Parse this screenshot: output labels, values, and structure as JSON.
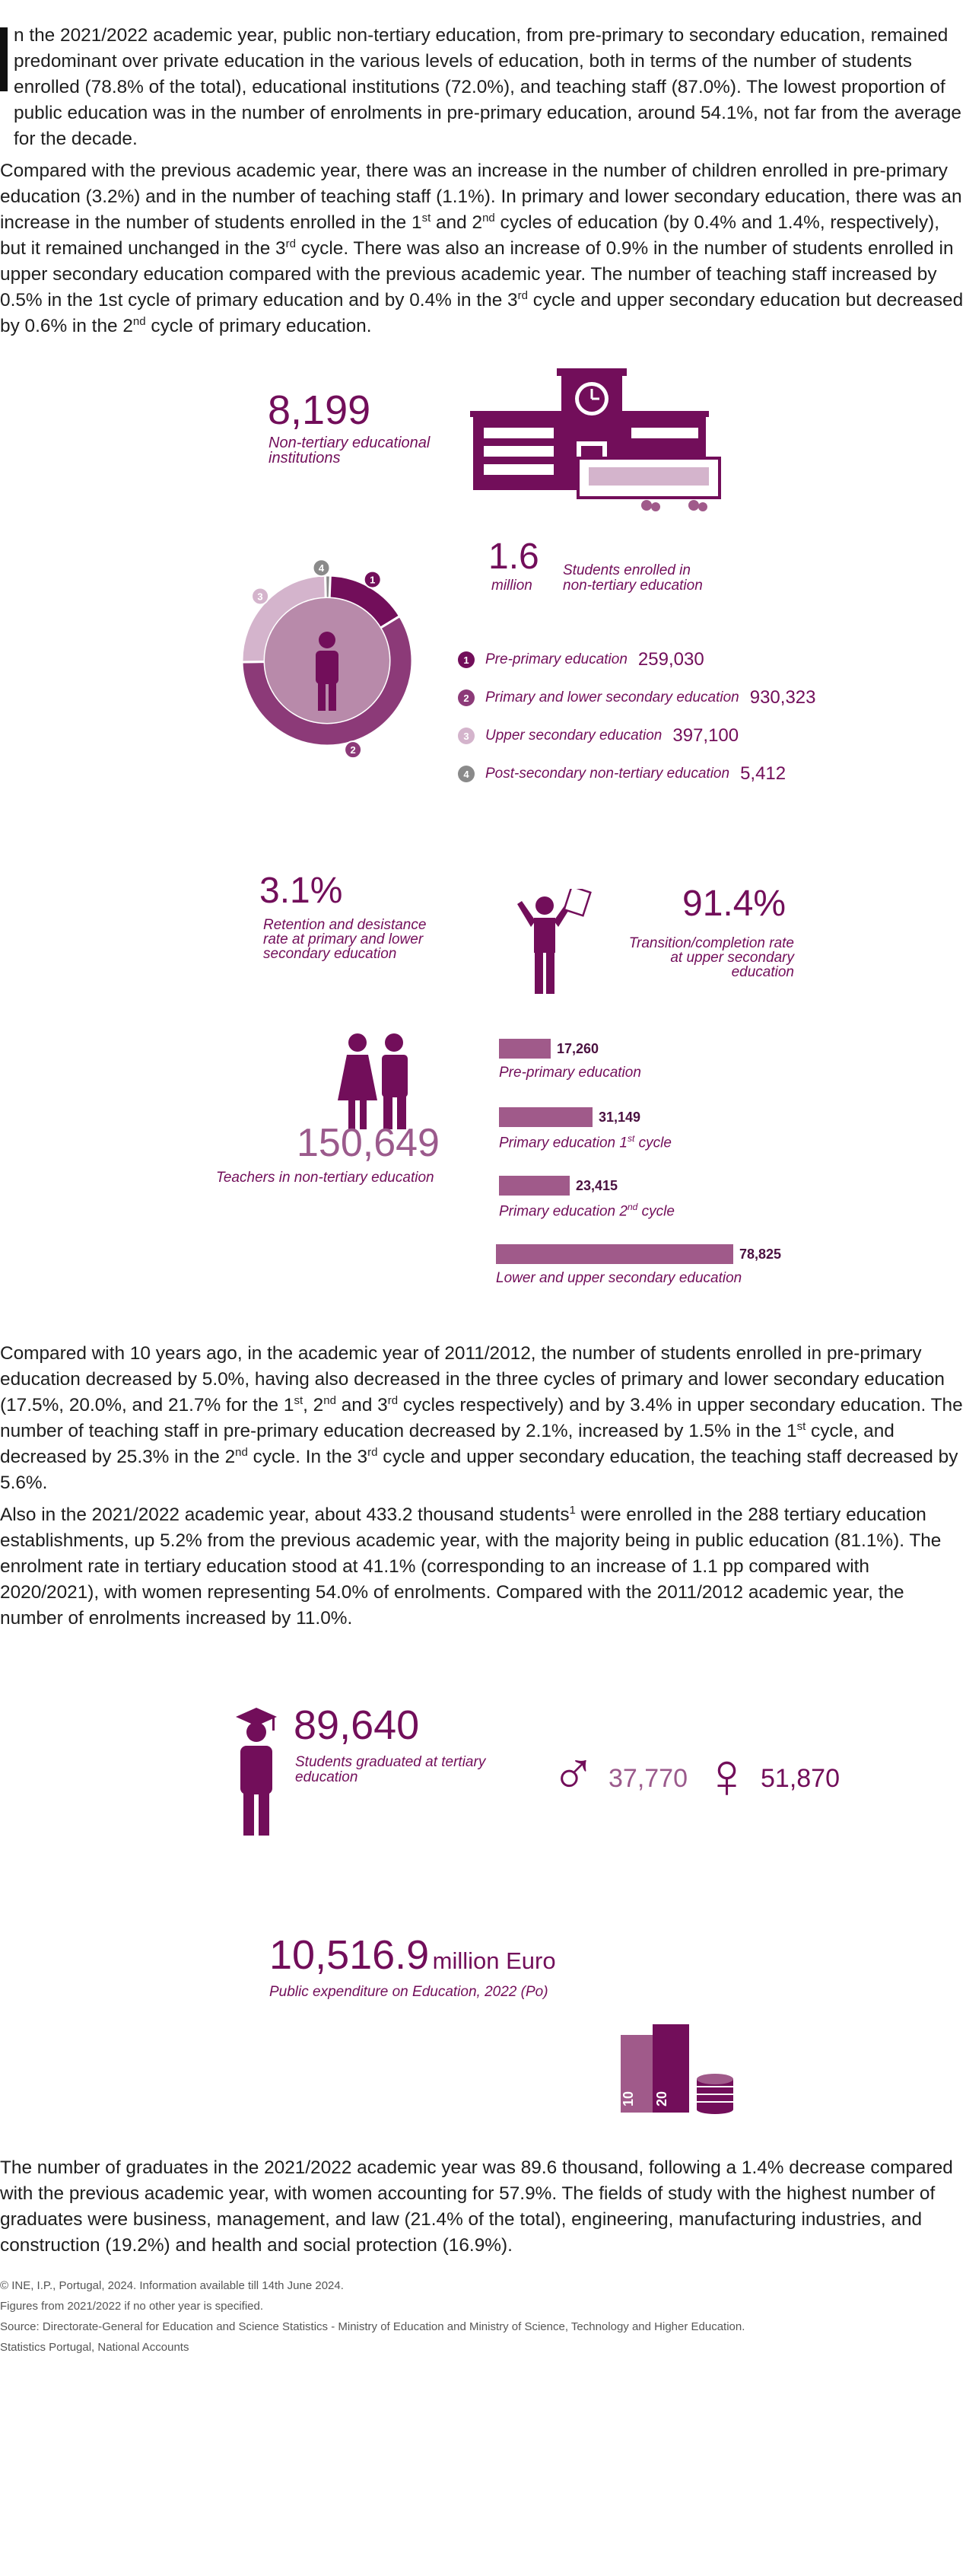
{
  "paragraphs": {
    "p1": "n the 2021/2022 academic year, public non-tertiary education, from pre-primary to secondary education, remained predominant over private education in the various levels of education, both in terms of the number of students enrolled (78.8% of the total), educational institutions (72.0%), and teaching staff (87.0%). The lowest proportion of public education was in the number of enrolments in pre-primary education, around 54.1%, not far from the average for the decade.",
    "p2_a": "Compared with the previous academic year, there was an increase in the number of children enrolled in pre-primary education (3.2%) and in the number of teaching staff (1.1%). In primary and lower secondary education, there was an increase in the number of students enrolled in the 1",
    "p2_b": " and 2",
    "p2_c": " cycles of education (by 0.4% and 1.4%, respectively), but it remained unchanged in the 3",
    "p2_d": " cycle. There was also an increase of 0.9% in the number of students enrolled in upper secondary education compared with the previous academic year. The number of teaching staff increased by 0.5% in the 1st cycle of primary education and by 0.4% in the 3",
    "p2_e": " cycle and upper secondary education but decreased by 0.6% in the 2",
    "p2_f": " cycle of primary education.",
    "p3_a": "Compared with 10 years ago, in the academic year of 2011/2012, the number of students enrolled in pre-primary education decreased by 5.0%, having also decreased in the three cycles of primary and lower secondary education (17.5%, 20.0%, and 21.7% for the 1",
    "p3_b": ", 2",
    "p3_c": " and 3",
    "p3_d": " cycles respectively) and by 3.4% in upper secondary education. The number of teaching staff in pre-primary education decreased by 2.1%, increased by 1.5% in the 1",
    "p3_e": " cycle, and decreased by 25.3% in the 2",
    "p3_f": " cycle. In the 3",
    "p3_g": " cycle and upper secondary education, the teaching staff decreased by 5.6%.",
    "p4_a": "Also in the 2021/2022 academic year, about 433.2 thousand students",
    "p4_sup": "1",
    "p4_b": " were enrolled in the 288 tertiary education establishments, up 5.2% from the previous academic year, with the majority being in public education (81.1%). The enrolment rate in tertiary education stood at 41.1% (corresponding to an increase of 1.1 pp compared with 2020/2021), with women representing 54.0% of enrolments. Compared with the 2011/2012 academic year, the number of enrolments increased by 11.0%.",
    "p5": "The number of graduates in the 2021/2022 academic year was 89.6 thousand, following a 1.4% decrease compared with the previous academic year, with women accounting for 57.9%. The fields of study with the highest number of graduates were business, management, and law (21.4% of the total), engineering, manufacturing industries, and construction (19.2%) and health and social protection (16.9%).",
    "sup_st": "st",
    "sup_nd": "nd",
    "sup_rd": "rd"
  },
  "institutions": {
    "value": "8,199",
    "caption_line1": "Non-tertiary educational",
    "caption_line2": "institutions"
  },
  "enrolled": {
    "value": "1.6",
    "unit": "million",
    "caption_line1": "Students enrolled in",
    "caption_line2": "non-tertiary education"
  },
  "enrolment_breakdown": [
    {
      "num": "1",
      "label": "Pre-primary education",
      "value": "259,030",
      "count": 259030,
      "color": "#720e5a"
    },
    {
      "num": "2",
      "label": "Primary and lower secondary education",
      "value": "930,323",
      "count": 930323,
      "color": "#8c3a78"
    },
    {
      "num": "3",
      "label": "Upper secondary education",
      "value": "397,100",
      "count": 397100,
      "color": "#d4b4cc"
    },
    {
      "num": "4",
      "label": "Post-secondary non-tertiary education",
      "value": "5,412",
      "count": 5412,
      "color": "#8a8a8a"
    }
  ],
  "retention": {
    "value": "3.1%",
    "caption_line1": "Retention and desistance",
    "caption_line2": "rate at primary and lower",
    "caption_line3": "secondary education"
  },
  "transition": {
    "value": "91.4%",
    "caption_line1": "Transition/completion rate",
    "caption_line2": "at upper secondary education"
  },
  "teachers": {
    "value": "150,649",
    "caption": "Teachers in non-tertiary education",
    "bars": [
      {
        "label": "Pre-primary education",
        "value": "17,260",
        "count": 17260
      },
      {
        "label_a": "Primary education 1",
        "label_sup": "st",
        "label_b": " cycle",
        "value": "31,149",
        "count": 31149
      },
      {
        "label_a": "Primary education 2",
        "label_sup": "nd",
        "label_b": " cycle",
        "value": "23,415",
        "count": 23415
      },
      {
        "label": "Lower and upper secondary education",
        "value": "78,825",
        "count": 78825
      }
    ]
  },
  "graduates": {
    "value": "89,640",
    "caption_line1": "Students graduated at tertiary",
    "caption_line2": "education",
    "male": "37,770",
    "female": "51,870",
    "male_symbol": "♂",
    "female_symbol": "♀"
  },
  "expenditure": {
    "value": "10,516.9",
    "unit": "million Euro",
    "caption": "Public expenditure on Education, 2022 (Po)",
    "book1": "10",
    "book2": "20"
  },
  "footer": {
    "line1": "© INE, I.P., Portugal, 2024. Information available till 14th June 2024.",
    "line2": "Figures from 2021/2022 if no other year is specified.",
    "line3": "Source:  Directorate-General for Education and Science Statistics - Ministry of Education and Ministry of Science, Technology and Higher Education.",
    "line4": "Statistics Portugal, National Accounts"
  },
  "colors": {
    "accent": "#720e5a",
    "mid": "#8c3a78",
    "light": "#d4b4cc",
    "bar": "#a05a8a",
    "grey": "#8a8a8a"
  }
}
